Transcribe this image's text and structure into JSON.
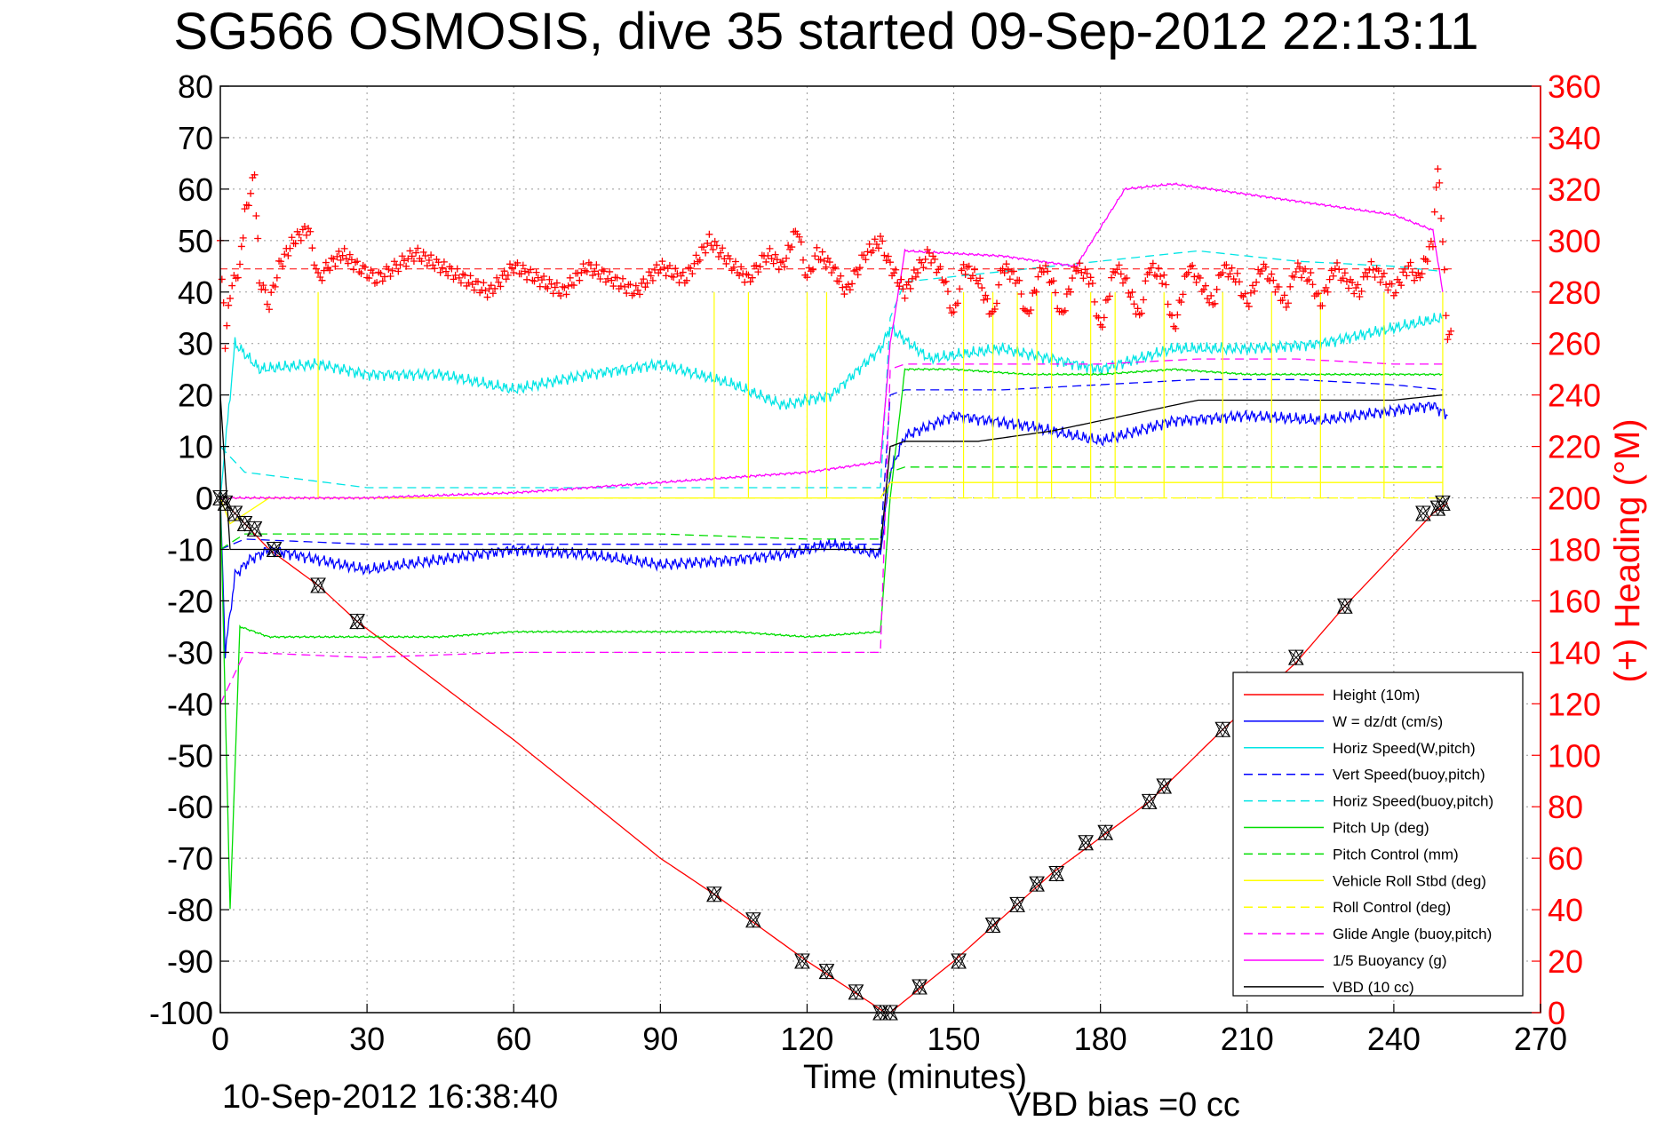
{
  "chart_data": {
    "type": "line",
    "title": "SG566 OSMOSIS, dive 35 started 09-Sep-2012 22:13:11",
    "xlabel": "Time (minutes)",
    "ylabel_right": "(+) Heading (°M)",
    "footer_left": "10-Sep-2012 16:38:40",
    "footer_right": "VBD bias =0 cc",
    "xlim": [
      0,
      270
    ],
    "ylim": [
      -100,
      80
    ],
    "ylim_right": [
      0,
      360
    ],
    "x_ticks": [
      "0",
      "30",
      "60",
      "90",
      "120",
      "150",
      "180",
      "210",
      "240",
      "270"
    ],
    "y_ticks": [
      "-100",
      "-90",
      "-80",
      "-70",
      "-60",
      "-50",
      "-40",
      "-30",
      "-20",
      "-10",
      "0",
      "10",
      "20",
      "30",
      "40",
      "50",
      "60",
      "70",
      "80"
    ],
    "y_ticks_right": [
      "0",
      "20",
      "40",
      "60",
      "80",
      "100",
      "120",
      "140",
      "160",
      "180",
      "200",
      "220",
      "240",
      "260",
      "280",
      "300",
      "320",
      "340",
      "360"
    ],
    "grid": true,
    "legend_position": "bottom-right",
    "series": [
      {
        "name": "Height (10m)",
        "color": "#ff0000",
        "dash": "solid",
        "x": [
          0,
          10,
          20,
          28,
          60,
          90,
          101,
          120,
          136,
          137,
          150,
          170,
          180,
          190,
          205,
          220,
          230,
          248,
          251
        ],
        "y": [
          0,
          -10,
          -17,
          -24,
          -47,
          -70,
          -77,
          -90,
          -100,
          -100,
          -90,
          -73,
          -66,
          -59,
          -45,
          -32,
          -21,
          -3,
          -1
        ]
      },
      {
        "name": "W = dz/dt (cm/s)",
        "color": "#0000ff",
        "dash": "solid",
        "x": [
          0,
          1,
          3,
          6,
          10,
          20,
          30,
          45,
          60,
          75,
          90,
          105,
          115,
          125,
          135,
          137,
          140,
          150,
          165,
          180,
          195,
          210,
          225,
          240,
          248,
          251
        ],
        "y": [
          0,
          -30,
          -15,
          -12,
          -10,
          -12,
          -14,
          -12,
          -10,
          -11,
          -13,
          -12,
          -11,
          -9,
          -11,
          5,
          12,
          16,
          14,
          11,
          15,
          16,
          15,
          17,
          18,
          16
        ]
      },
      {
        "name": "Horiz Speed(W,pitch)",
        "color": "#00e5e5",
        "dash": "solid",
        "x": [
          0,
          1,
          3,
          8,
          20,
          30,
          45,
          60,
          75,
          90,
          105,
          115,
          125,
          135,
          137,
          145,
          160,
          180,
          195,
          210,
          225,
          240,
          250
        ],
        "y": [
          0,
          10,
          30,
          25,
          26,
          24,
          24,
          21,
          24,
          26,
          22,
          18,
          20,
          29,
          33,
          27,
          29,
          25,
          29,
          29,
          30,
          33,
          35
        ]
      },
      {
        "name": "Vert Speed(buoy,pitch)",
        "color": "#0000ff",
        "dash": "dashed",
        "x": [
          0,
          5,
          30,
          60,
          90,
          120,
          135,
          137,
          140,
          160,
          180,
          200,
          220,
          240,
          250
        ],
        "y": [
          -10,
          -8,
          -9,
          -9,
          -9,
          -9,
          -9,
          20,
          21,
          21,
          22,
          23,
          23,
          22,
          21
        ]
      },
      {
        "name": "Horiz Speed(buoy,pitch)",
        "color": "#00e5e5",
        "dash": "dashed",
        "x": [
          0,
          5,
          30,
          60,
          90,
          120,
          135,
          137,
          140,
          160,
          180,
          200,
          220,
          240,
          250
        ],
        "y": [
          10,
          5,
          2,
          2,
          2,
          2,
          2,
          35,
          42,
          44,
          46,
          48,
          46,
          45,
          44
        ]
      },
      {
        "name": "Pitch Up (deg)",
        "color": "#00dd00",
        "dash": "solid",
        "x": [
          0,
          2,
          4,
          10,
          20,
          30,
          45,
          60,
          75,
          90,
          105,
          120,
          135,
          137,
          140,
          150,
          165,
          180,
          195,
          210,
          225,
          240,
          250
        ],
        "y": [
          0,
          -80,
          -25,
          -27,
          -27,
          -27,
          -27,
          -26,
          -26,
          -26,
          -26,
          -27,
          -26,
          0,
          25,
          25,
          24,
          24,
          25,
          24,
          24,
          24,
          24
        ]
      },
      {
        "name": "Pitch Control (mm)",
        "color": "#00dd00",
        "dash": "dashed",
        "x": [
          0,
          5,
          30,
          60,
          90,
          120,
          135,
          137,
          140,
          160,
          180,
          200,
          220,
          240,
          250
        ],
        "y": [
          -10,
          -7,
          -7,
          -7,
          -7,
          -8,
          -8,
          5,
          6,
          6,
          6,
          6,
          6,
          6,
          6
        ]
      },
      {
        "name": "Vehicle Roll Stbd (deg)",
        "color": "#ffff00",
        "dash": "solid",
        "x": [
          0,
          2,
          10,
          30,
          60,
          90,
          120,
          135,
          137,
          140,
          160,
          180,
          200,
          220,
          240,
          250
        ],
        "y": [
          0,
          -5,
          0,
          0,
          0,
          0,
          0,
          0,
          3,
          3,
          3,
          3,
          3,
          3,
          3,
          3
        ]
      },
      {
        "name": "Roll Control (deg)",
        "color": "#ffff00",
        "dash": "dashed",
        "x": [
          0,
          10,
          60,
          120,
          135,
          137,
          200,
          250
        ],
        "y": [
          0,
          0,
          0,
          0,
          0,
          0,
          0,
          0
        ]
      },
      {
        "name": "Glide Angle (buoy,pitch)",
        "color": "#ff00ff",
        "dash": "dashed",
        "x": [
          0,
          5,
          30,
          60,
          90,
          120,
          135,
          137,
          140,
          160,
          180,
          200,
          220,
          240,
          250
        ],
        "y": [
          -40,
          -30,
          -31,
          -30,
          -30,
          -30,
          -30,
          25,
          26,
          26,
          26,
          27,
          27,
          26,
          26
        ]
      },
      {
        "name": "1/5 Buoyancy (g)",
        "color": "#ff00ff",
        "dash": "solid",
        "x": [
          0,
          10,
          30,
          60,
          90,
          120,
          135,
          137,
          140,
          160,
          175,
          185,
          195,
          210,
          225,
          240,
          248,
          250
        ],
        "y": [
          0,
          0,
          0,
          1,
          3,
          5,
          7,
          30,
          48,
          47,
          45,
          60,
          61,
          59,
          57,
          55,
          52,
          40
        ]
      },
      {
        "name": "VBD (10 cc)",
        "color": "#000000",
        "dash": "solid",
        "x": [
          0,
          2,
          10,
          30,
          60,
          90,
          120,
          135,
          137,
          140,
          155,
          170,
          180,
          190,
          200,
          240,
          250
        ],
        "y": [
          20,
          -10,
          -10,
          -10,
          -10,
          -10,
          -10,
          -10,
          10,
          11,
          11,
          13,
          15,
          17,
          19,
          19,
          20
        ]
      }
    ],
    "heading_series": {
      "color": "#ff0000",
      "marker": "+",
      "axis": "right",
      "mean": 289,
      "x": [
        0,
        1,
        2,
        4,
        5,
        7,
        8,
        10,
        12,
        15,
        18,
        20,
        22,
        25,
        28,
        32,
        36,
        40,
        45,
        50,
        55,
        60,
        65,
        70,
        75,
        80,
        85,
        90,
        95,
        100,
        105,
        108,
        112,
        115,
        118,
        120,
        122,
        125,
        128,
        132,
        135,
        137,
        140,
        143,
        145,
        148,
        150,
        152,
        155,
        158,
        160,
        163,
        165,
        168,
        170,
        172,
        175,
        178,
        180,
        183,
        185,
        188,
        190,
        193,
        195,
        198,
        200,
        203,
        205,
        208,
        210,
        213,
        215,
        218,
        220,
        223,
        225,
        228,
        230,
        233,
        235,
        238,
        240,
        243,
        245,
        248,
        249,
        250,
        251,
        252
      ],
      "y": [
        300,
        260,
        280,
        290,
        310,
        325,
        285,
        275,
        290,
        300,
        305,
        285,
        290,
        295,
        290,
        285,
        290,
        295,
        290,
        285,
        280,
        290,
        285,
        280,
        290,
        285,
        280,
        290,
        285,
        300,
        290,
        285,
        295,
        290,
        305,
        285,
        295,
        290,
        280,
        295,
        300,
        290,
        280,
        290,
        295,
        285,
        270,
        290,
        285,
        270,
        290,
        285,
        270,
        290,
        285,
        270,
        290,
        285,
        265,
        290,
        285,
        270,
        290,
        285,
        265,
        290,
        285,
        275,
        290,
        285,
        275,
        290,
        285,
        275,
        290,
        285,
        275,
        290,
        285,
        280,
        290,
        285,
        280,
        290,
        285,
        300,
        330,
        300,
        260,
        270
      ]
    },
    "depth_markers": [
      {
        "x": 0,
        "y": 0
      },
      {
        "x": 1,
        "y": -1
      },
      {
        "x": 3,
        "y": -3
      },
      {
        "x": 5,
        "y": -5
      },
      {
        "x": 7,
        "y": -6
      },
      {
        "x": 11,
        "y": -10
      },
      {
        "x": 20,
        "y": -17
      },
      {
        "x": 28,
        "y": -24
      },
      {
        "x": 101,
        "y": -77
      },
      {
        "x": 109,
        "y": -82
      },
      {
        "x": 119,
        "y": -90
      },
      {
        "x": 124,
        "y": -92
      },
      {
        "x": 130,
        "y": -96
      },
      {
        "x": 135,
        "y": -100
      },
      {
        "x": 137,
        "y": -100
      },
      {
        "x": 143,
        "y": -95
      },
      {
        "x": 151,
        "y": -90
      },
      {
        "x": 158,
        "y": -83
      },
      {
        "x": 163,
        "y": -79
      },
      {
        "x": 167,
        "y": -75
      },
      {
        "x": 171,
        "y": -73
      },
      {
        "x": 177,
        "y": -67
      },
      {
        "x": 181,
        "y": -65
      },
      {
        "x": 190,
        "y": -59
      },
      {
        "x": 193,
        "y": -56
      },
      {
        "x": 205,
        "y": -45
      },
      {
        "x": 220,
        "y": -31
      },
      {
        "x": 230,
        "y": -21
      },
      {
        "x": 246,
        "y": -3
      },
      {
        "x": 249,
        "y": -2
      },
      {
        "x": 250,
        "y": -1
      }
    ]
  }
}
